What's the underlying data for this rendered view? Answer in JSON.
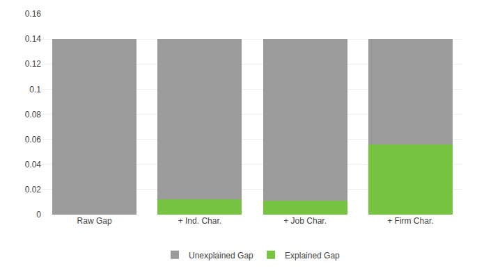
{
  "chart_data": {
    "type": "bar",
    "stacked": true,
    "categories": [
      "Raw Gap",
      "+ Ind. Char.",
      "+ Job Char.",
      "+ Firm Char."
    ],
    "series": [
      {
        "name": "Explained Gap",
        "color": "#76C442",
        "values": [
          0.0,
          0.012,
          0.011,
          0.056
        ]
      },
      {
        "name": "Unexplained Gap",
        "color": "#9B9B9B",
        "values": [
          0.14,
          0.128,
          0.129,
          0.084
        ]
      }
    ],
    "ylim": [
      0,
      0.16
    ],
    "yticks": [
      0,
      0.02,
      0.04,
      0.06,
      0.08,
      0.1,
      0.12,
      0.14,
      0.16
    ],
    "grid": true,
    "legend": "bottom"
  }
}
